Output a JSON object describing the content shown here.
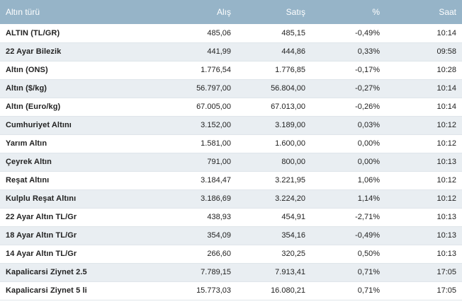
{
  "header": {
    "name": "Altın türü",
    "buy": "Alış",
    "sell": "Satış",
    "pct": "%",
    "time": "Saat"
  },
  "rows": [
    {
      "name": "ALTIN (TL/GR)",
      "buy": "485,06",
      "sell": "485,15",
      "pct": "-0,49%",
      "time": "10:14"
    },
    {
      "name": "22 Ayar Bilezik",
      "buy": "441,99",
      "sell": "444,86",
      "pct": "0,33%",
      "time": "09:58"
    },
    {
      "name": "Altın (ONS)",
      "buy": "1.776,54",
      "sell": "1.776,85",
      "pct": "-0,17%",
      "time": "10:28"
    },
    {
      "name": "Altın ($/kg)",
      "buy": "56.797,00",
      "sell": "56.804,00",
      "pct": "-0,27%",
      "time": "10:14"
    },
    {
      "name": "Altın (Euro/kg)",
      "buy": "67.005,00",
      "sell": "67.013,00",
      "pct": "-0,26%",
      "time": "10:14"
    },
    {
      "name": "Cumhuriyet Altını",
      "buy": "3.152,00",
      "sell": "3.189,00",
      "pct": "0,03%",
      "time": "10:12"
    },
    {
      "name": "Yarım Altın",
      "buy": "1.581,00",
      "sell": "1.600,00",
      "pct": "0,00%",
      "time": "10:12"
    },
    {
      "name": "Çeyrek Altın",
      "buy": "791,00",
      "sell": "800,00",
      "pct": "0,00%",
      "time": "10:13"
    },
    {
      "name": "Reşat Altını",
      "buy": "3.184,47",
      "sell": "3.221,95",
      "pct": "1,06%",
      "time": "10:12"
    },
    {
      "name": "Kulplu Reşat Altını",
      "buy": "3.186,69",
      "sell": "3.224,20",
      "pct": "1,14%",
      "time": "10:12"
    },
    {
      "name": "22 Ayar Altın TL/Gr",
      "buy": "438,93",
      "sell": "454,91",
      "pct": "-2,71%",
      "time": "10:13"
    },
    {
      "name": "18 Ayar Altın TL/Gr",
      "buy": "354,09",
      "sell": "354,16",
      "pct": "-0,49%",
      "time": "10:13"
    },
    {
      "name": "14 Ayar Altın TL/Gr",
      "buy": "266,60",
      "sell": "320,25",
      "pct": "0,50%",
      "time": "10:13"
    },
    {
      "name": "Kapalicarsi Ziynet 2.5",
      "buy": "7.789,15",
      "sell": "7.913,41",
      "pct": "0,71%",
      "time": "17:05"
    },
    {
      "name": "Kapalicarsi Ziynet 5 li",
      "buy": "15.773,03",
      "sell": "16.080,21",
      "pct": "0,71%",
      "time": "17:05"
    }
  ]
}
